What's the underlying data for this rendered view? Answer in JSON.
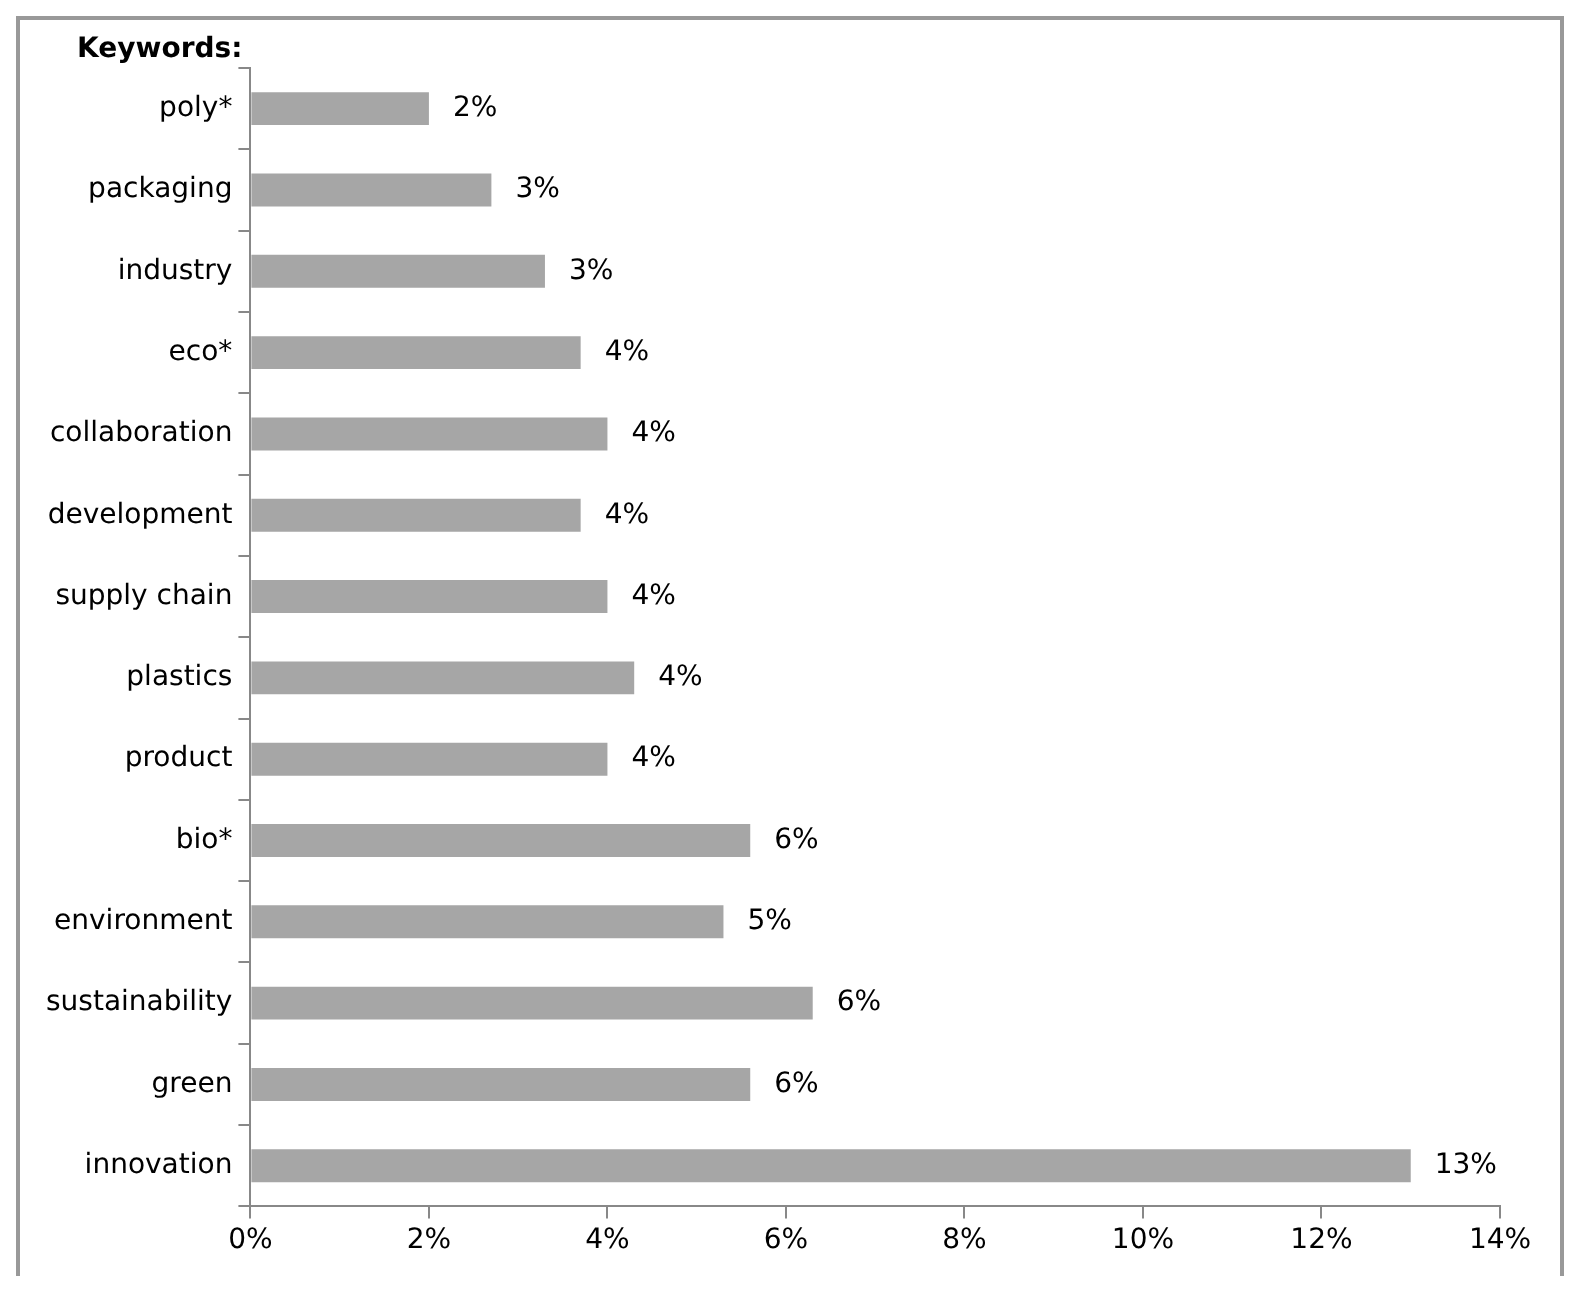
{
  "chart_data": {
    "type": "bar",
    "orientation": "horizontal",
    "ylabel": "Keywords:",
    "categories": [
      "poly*",
      "packaging",
      "industry",
      "eco*",
      "collaboration",
      "development",
      "supply chain",
      "plastics",
      "product",
      "bio*",
      "environment",
      "sustainability",
      "green",
      "innovation"
    ],
    "values": [
      2.0,
      2.7,
      3.3,
      3.7,
      4.0,
      3.7,
      4.0,
      4.3,
      4.0,
      5.6,
      5.3,
      6.3,
      5.6,
      13.0
    ],
    "value_labels": [
      "2%",
      "3%",
      "3%",
      "4%",
      "4%",
      "4%",
      "4%",
      "4%",
      "4%",
      "6%",
      "5%",
      "6%",
      "6%",
      "13%"
    ],
    "color": "#a6a6a6",
    "xlim": [
      0,
      14
    ],
    "xticks": [
      {
        "value": 0,
        "label": "0%"
      },
      {
        "value": 2,
        "label": "2%"
      },
      {
        "value": 4,
        "label": "4%"
      },
      {
        "value": 6,
        "label": "6%"
      },
      {
        "value": 8,
        "label": "8%"
      },
      {
        "value": 10,
        "label": "10%"
      },
      {
        "value": 12,
        "label": "12%"
      },
      {
        "value": 14,
        "label": "14%"
      }
    ],
    "grid": false,
    "legend": false
  }
}
